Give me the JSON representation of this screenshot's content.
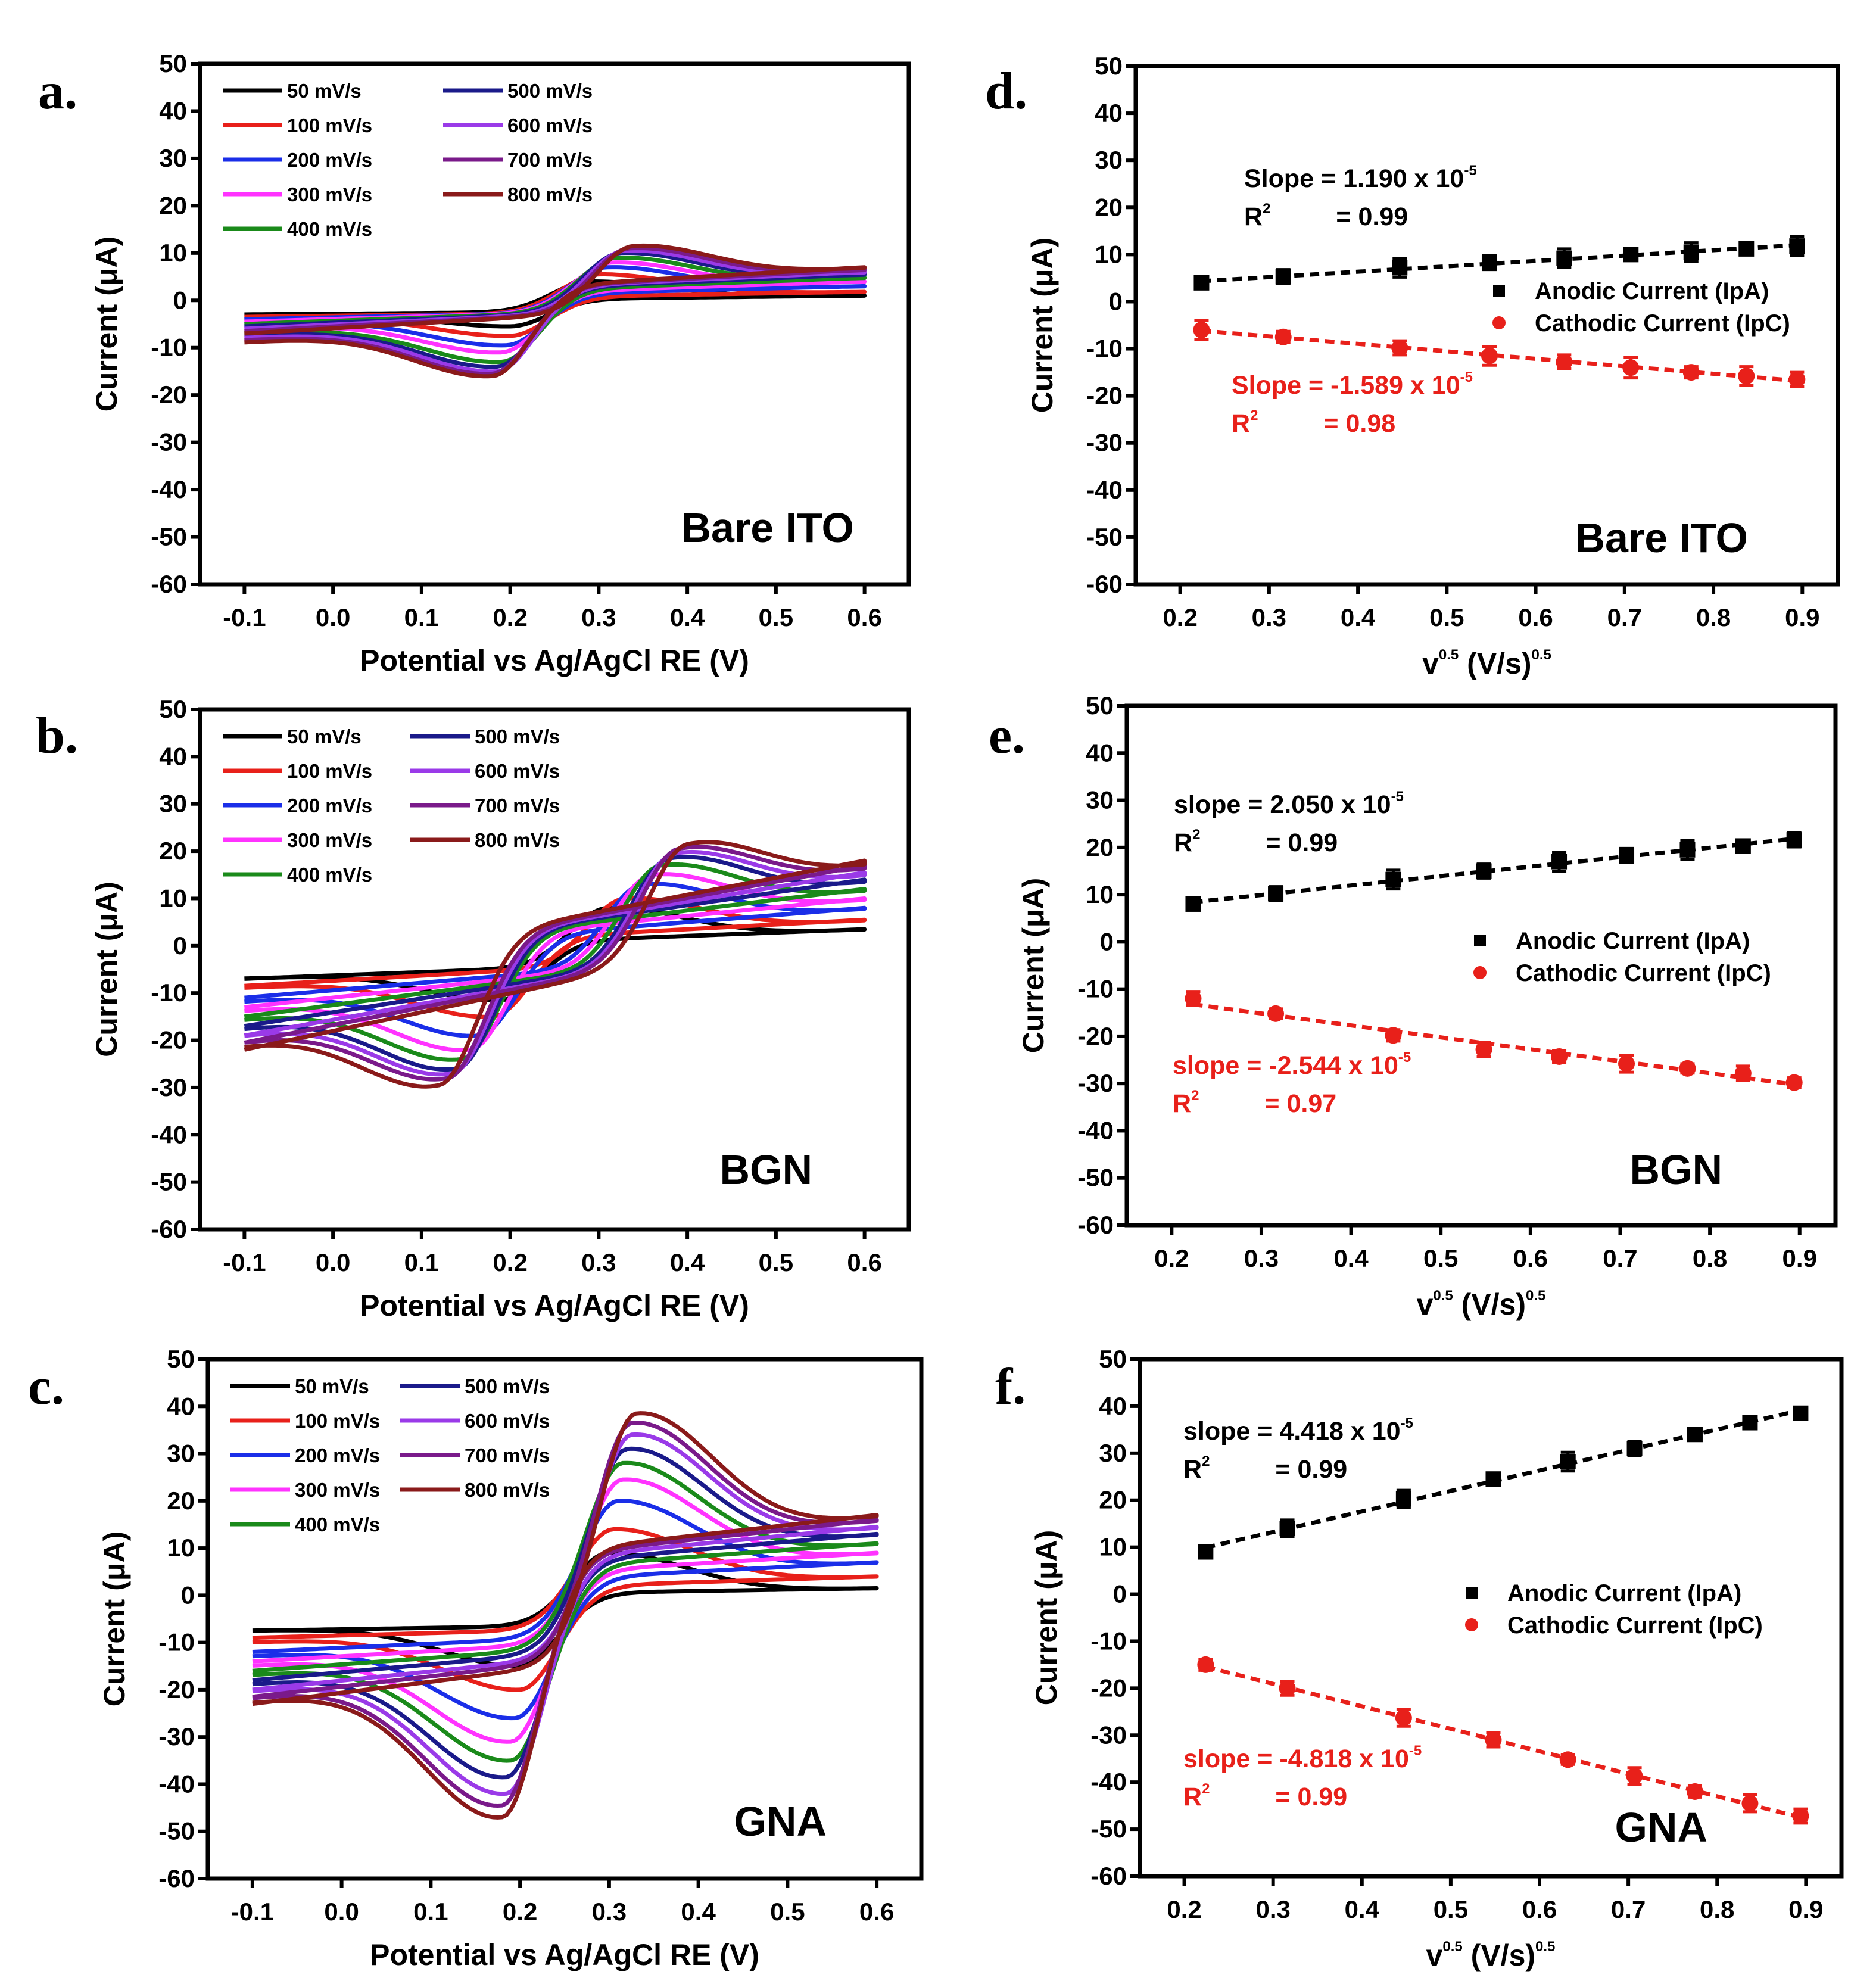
{
  "chart_data": [
    {
      "panel": "a",
      "panel_label": "a.",
      "type": "line",
      "annotation": "Bare ITO",
      "xlabel": "Potential vs Ag/AgCl RE (V)",
      "ylabel": "Current (μA)",
      "xlim": [
        -0.15,
        0.65
      ],
      "ylim": [
        -60,
        50
      ],
      "xticks": [
        "-0.1",
        "0.0",
        "0.1",
        "0.2",
        "0.3",
        "0.4",
        "0.5",
        "0.6"
      ],
      "yticks": [
        "50",
        "40",
        "30",
        "20",
        "10",
        "0",
        "-10",
        "-20",
        "-30",
        "-40",
        "-50",
        "-60"
      ],
      "legend": "top-left",
      "series": [
        {
          "name": "50 mV/s",
          "color": "#000000",
          "anodic_peak": [
            0.29,
            4
          ],
          "cathodic_peak": [
            0.2,
            -5.5
          ],
          "start_current": -3,
          "return_current": -3,
          "vertex_current": 1
        },
        {
          "name": "100 mV/s",
          "color": "#e8201a",
          "anodic_peak": [
            0.3,
            5.5
          ],
          "cathodic_peak": [
            0.2,
            -7.5
          ],
          "start_current": -3.5,
          "return_current": -4,
          "vertex_current": 1.8
        },
        {
          "name": "200 mV/s",
          "color": "#1a2ee8",
          "anodic_peak": [
            0.31,
            7
          ],
          "cathodic_peak": [
            0.195,
            -9.5
          ],
          "start_current": -4,
          "return_current": -5,
          "vertex_current": 3
        },
        {
          "name": "300 mV/s",
          "color": "#ff33ff",
          "anodic_peak": [
            0.315,
            8
          ],
          "cathodic_peak": [
            0.19,
            -11
          ],
          "start_current": -4.5,
          "return_current": -6,
          "vertex_current": 4
        },
        {
          "name": "400 mV/s",
          "color": "#1a8a1a",
          "anodic_peak": [
            0.32,
            9
          ],
          "cathodic_peak": [
            0.19,
            -13
          ],
          "start_current": -5,
          "return_current": -7,
          "vertex_current": 4.8
        },
        {
          "name": "500 mV/s",
          "color": "#1a1a8a",
          "anodic_peak": [
            0.325,
            10
          ],
          "cathodic_peak": [
            0.185,
            -14
          ],
          "start_current": -5.5,
          "return_current": -7.5,
          "vertex_current": 5.5
        },
        {
          "name": "600 mV/s",
          "color": "#9a3ae8",
          "anodic_peak": [
            0.33,
            10.5
          ],
          "cathodic_peak": [
            0.185,
            -15
          ],
          "start_current": -6,
          "return_current": -8,
          "vertex_current": 6
        },
        {
          "name": "700 mV/s",
          "color": "#7a1a8a",
          "anodic_peak": [
            0.335,
            11
          ],
          "cathodic_peak": [
            0.18,
            -15.5
          ],
          "start_current": -6.5,
          "return_current": -8.5,
          "vertex_current": 6.5
        },
        {
          "name": "800 mV/s",
          "color": "#8a1a1a",
          "anodic_peak": [
            0.34,
            11.5
          ],
          "cathodic_peak": [
            0.18,
            -16
          ],
          "start_current": -7,
          "return_current": -9,
          "vertex_current": 7
        }
      ]
    },
    {
      "panel": "b",
      "panel_label": "b.",
      "type": "line",
      "annotation": "BGN",
      "xlabel": "Potential vs Ag/AgCl RE (V)",
      "ylabel": "Current (μA)",
      "xlim": [
        -0.15,
        0.65
      ],
      "ylim": [
        -60,
        50
      ],
      "xticks": [
        "-0.1",
        "0.0",
        "0.1",
        "0.2",
        "0.3",
        "0.4",
        "0.5",
        "0.6"
      ],
      "yticks": [
        "50",
        "40",
        "30",
        "20",
        "10",
        "0",
        "-10",
        "-20",
        "-30",
        "-40",
        "-50",
        "-60"
      ],
      "legend": "top-left",
      "series": [
        {
          "name": "50 mV/s",
          "color": "#000000",
          "anodic_peak": [
            0.31,
            8
          ],
          "cathodic_peak": [
            0.19,
            -11.5
          ],
          "start_current": -7,
          "return_current": -7,
          "vertex_current": 3.5
        },
        {
          "name": "100 mV/s",
          "color": "#e8201a",
          "anodic_peak": [
            0.33,
            10
          ],
          "cathodic_peak": [
            0.18,
            -15
          ],
          "start_current": -8.5,
          "return_current": -9,
          "vertex_current": 5.5
        },
        {
          "name": "200 mV/s",
          "color": "#1a2ee8",
          "anodic_peak": [
            0.35,
            13
          ],
          "cathodic_peak": [
            0.165,
            -19
          ],
          "start_current": -11,
          "return_current": -12,
          "vertex_current": 8
        },
        {
          "name": "300 mV/s",
          "color": "#ff33ff",
          "anodic_peak": [
            0.36,
            15
          ],
          "cathodic_peak": [
            0.155,
            -22
          ],
          "start_current": -13,
          "return_current": -14,
          "vertex_current": 10
        },
        {
          "name": "400 mV/s",
          "color": "#1a8a1a",
          "anodic_peak": [
            0.37,
            17
          ],
          "cathodic_peak": [
            0.145,
            -24
          ],
          "start_current": -15,
          "return_current": -16,
          "vertex_current": 12
        },
        {
          "name": "500 mV/s",
          "color": "#1a1a8a",
          "anodic_peak": [
            0.38,
            18.5
          ],
          "cathodic_peak": [
            0.14,
            -26
          ],
          "start_current": -17,
          "return_current": -18,
          "vertex_current": 14
        },
        {
          "name": "600 mV/s",
          "color": "#9a3ae8",
          "anodic_peak": [
            0.385,
            19.5
          ],
          "cathodic_peak": [
            0.135,
            -27
          ],
          "start_current": -19,
          "return_current": -19.5,
          "vertex_current": 15.5
        },
        {
          "name": "700 mV/s",
          "color": "#7a1a8a",
          "anodic_peak": [
            0.39,
            20.5
          ],
          "cathodic_peak": [
            0.13,
            -28
          ],
          "start_current": -20.5,
          "return_current": -21,
          "vertex_current": 17
        },
        {
          "name": "800 mV/s",
          "color": "#8a1a1a",
          "anodic_peak": [
            0.4,
            21.5
          ],
          "cathodic_peak": [
            0.12,
            -29.5
          ],
          "start_current": -22,
          "return_current": -22,
          "vertex_current": 18
        }
      ]
    },
    {
      "panel": "c",
      "panel_label": "c.",
      "type": "line",
      "annotation": "GNA",
      "xlabel": "Potential vs Ag/AgCl RE (V)",
      "ylabel": "Current (μA)",
      "xlim": [
        -0.15,
        0.65
      ],
      "ylim": [
        -60,
        50
      ],
      "xticks": [
        "-0.1",
        "0.0",
        "0.1",
        "0.2",
        "0.3",
        "0.4",
        "0.5",
        "0.6"
      ],
      "yticks": [
        "50",
        "40",
        "30",
        "20",
        "10",
        "0",
        "-10",
        "-20",
        "-30",
        "-40",
        "-50",
        "-60"
      ],
      "legend": "top-left",
      "series": [
        {
          "name": "50 mV/s",
          "color": "#000000",
          "anodic_peak": [
            0.3,
            9
          ],
          "cathodic_peak": [
            0.2,
            -15
          ],
          "start_current": -7.5,
          "return_current": -7.5,
          "vertex_current": 1.5
        },
        {
          "name": "100 mV/s",
          "color": "#e8201a",
          "anodic_peak": [
            0.305,
            14
          ],
          "cathodic_peak": [
            0.2,
            -20
          ],
          "start_current": -9,
          "return_current": -10,
          "vertex_current": 4
        },
        {
          "name": "200 mV/s",
          "color": "#1a2ee8",
          "anodic_peak": [
            0.31,
            20
          ],
          "cathodic_peak": [
            0.195,
            -26
          ],
          "start_current": -12,
          "return_current": -13,
          "vertex_current": 7
        },
        {
          "name": "300 mV/s",
          "color": "#ff33ff",
          "anodic_peak": [
            0.315,
            24.5
          ],
          "cathodic_peak": [
            0.19,
            -31
          ],
          "start_current": -14,
          "return_current": -15,
          "vertex_current": 9
        },
        {
          "name": "400 mV/s",
          "color": "#1a8a1a",
          "anodic_peak": [
            0.315,
            28
          ],
          "cathodic_peak": [
            0.19,
            -35
          ],
          "start_current": -16,
          "return_current": -17,
          "vertex_current": 11
        },
        {
          "name": "500 mV/s",
          "color": "#1a1a8a",
          "anodic_peak": [
            0.32,
            31
          ],
          "cathodic_peak": [
            0.185,
            -38.5
          ],
          "start_current": -18,
          "return_current": -19,
          "vertex_current": 13
        },
        {
          "name": "600 mV/s",
          "color": "#9a3ae8",
          "anodic_peak": [
            0.325,
            34
          ],
          "cathodic_peak": [
            0.185,
            -42
          ],
          "start_current": -20,
          "return_current": -20.5,
          "vertex_current": 14.5
        },
        {
          "name": "700 mV/s",
          "color": "#7a1a8a",
          "anodic_peak": [
            0.325,
            36.5
          ],
          "cathodic_peak": [
            0.18,
            -44.5
          ],
          "start_current": -21.5,
          "return_current": -22,
          "vertex_current": 16
        },
        {
          "name": "800 mV/s",
          "color": "#8a1a1a",
          "anodic_peak": [
            0.33,
            38.5
          ],
          "cathodic_peak": [
            0.18,
            -47
          ],
          "start_current": -23,
          "return_current": -23,
          "vertex_current": 17
        }
      ]
    },
    {
      "panel": "d",
      "panel_label": "d.",
      "type": "scatter",
      "annotation": "Bare ITO",
      "xlabel": {
        "base": "v",
        "sup1": "0.5",
        "unit": " (V/s)",
        "sup2": "0.5"
      },
      "ylabel": "Current (μA)",
      "xlim": [
        0.15,
        0.94
      ],
      "ylim": [
        -60,
        50
      ],
      "xticks": [
        "0.2",
        "0.3",
        "0.4",
        "0.5",
        "0.6",
        "0.7",
        "0.8",
        "0.9"
      ],
      "yticks": [
        "50",
        "40",
        "30",
        "20",
        "10",
        "0",
        "-10",
        "-20",
        "-30",
        "-40",
        "-50",
        "-60"
      ],
      "legend": "right-middle",
      "x": [
        0.224,
        0.316,
        0.447,
        0.548,
        0.632,
        0.707,
        0.775,
        0.837,
        0.894
      ],
      "series": [
        {
          "name": "Anodic Current (IpA)",
          "color": "#000000",
          "marker": "square",
          "values": [
            4,
            5.3,
            7.2,
            8.3,
            9.2,
            10,
            10.5,
            11.2,
            11.8
          ],
          "errors": [
            1,
            1.5,
            2,
            1.5,
            2,
            1,
            2,
            1,
            2
          ]
        },
        {
          "name": "Cathodic Current (IpC)",
          "color": "#e8201a",
          "marker": "circle",
          "values": [
            -6,
            -7.5,
            -9.8,
            -11.5,
            -12.8,
            -14,
            -15,
            -15.8,
            -16.5
          ],
          "errors": [
            2,
            1.2,
            1.5,
            2,
            1.5,
            2.2,
            1.2,
            2,
            1.5
          ]
        }
      ],
      "fit_annotations": [
        {
          "slope_label": "Slope = 1.190 x 10",
          "exponent": "-5",
          "r2_label": "R",
          "r2_sup": "2",
          "r2_value": "= 0.99",
          "color": "#000000"
        },
        {
          "slope_label": "Slope = -1.589 x 10",
          "exponent": "-5",
          "r2_label": "R",
          "r2_sup": "2",
          "r2_value": "= 0.98",
          "color": "#e8201a"
        }
      ]
    },
    {
      "panel": "e",
      "panel_label": "e.",
      "type": "scatter",
      "annotation": "BGN",
      "xlabel": {
        "base": "v",
        "sup1": "0.5",
        "unit": " (V/s)",
        "sup2": "0.5"
      },
      "ylabel": "Current (μA)",
      "xlim": [
        0.15,
        0.94
      ],
      "ylim": [
        -60,
        50
      ],
      "xticks": [
        "0.2",
        "0.3",
        "0.4",
        "0.5",
        "0.6",
        "0.7",
        "0.8",
        "0.9"
      ],
      "yticks": [
        "50",
        "40",
        "30",
        "20",
        "10",
        "0",
        "-10",
        "-20",
        "-30",
        "-40",
        "-50",
        "-60"
      ],
      "legend": "right-middle",
      "x": [
        0.224,
        0.316,
        0.447,
        0.548,
        0.632,
        0.707,
        0.775,
        0.837,
        0.894
      ],
      "series": [
        {
          "name": "Anodic Current (IpA)",
          "color": "#000000",
          "marker": "square",
          "values": [
            8,
            10.2,
            13.2,
            15,
            17,
            18.3,
            19.5,
            20.3,
            21.6
          ],
          "errors": [
            1,
            1.5,
            2,
            1.5,
            2,
            1.5,
            2,
            1.3,
            1.5
          ]
        },
        {
          "name": "Cathodic Current (IpC)",
          "color": "#e8201a",
          "marker": "circle",
          "values": [
            -12,
            -15.2,
            -19.8,
            -22.8,
            -24.3,
            -25.8,
            -26.8,
            -27.8,
            -29.8
          ],
          "errors": [
            1.5,
            1,
            1.2,
            1.5,
            1.3,
            1.8,
            1,
            1.5,
            1
          ]
        }
      ],
      "fit_annotations": [
        {
          "slope_label": "slope = 2.050 x 10",
          "exponent": "-5",
          "r2_label": "R",
          "r2_sup": "2",
          "r2_value": "= 0.99",
          "color": "#000000"
        },
        {
          "slope_label": "slope = -2.544 x 10",
          "exponent": "-5",
          "r2_label": "R",
          "r2_sup": "2",
          "r2_value": "= 0.97",
          "color": "#e8201a"
        }
      ]
    },
    {
      "panel": "f",
      "panel_label": "f.",
      "type": "scatter",
      "annotation": "GNA",
      "xlabel": {
        "base": "v",
        "sup1": "0.5",
        "unit": " (V/s)",
        "sup2": "0.5"
      },
      "ylabel": "Current (μA)",
      "xlim": [
        0.15,
        0.94
      ],
      "ylim": [
        -60,
        50
      ],
      "xticks": [
        "0.2",
        "0.3",
        "0.4",
        "0.5",
        "0.6",
        "0.7",
        "0.8",
        "0.9"
      ],
      "yticks": [
        "50",
        "40",
        "30",
        "20",
        "10",
        "0",
        "-10",
        "-20",
        "-30",
        "-40",
        "-50",
        "-60"
      ],
      "legend": "right-middle",
      "x": [
        0.224,
        0.316,
        0.447,
        0.548,
        0.632,
        0.707,
        0.775,
        0.837,
        0.894
      ],
      "series": [
        {
          "name": "Anodic Current (IpA)",
          "color": "#000000",
          "marker": "square",
          "values": [
            9,
            14,
            20.3,
            24.5,
            28.2,
            31,
            34,
            36.5,
            38.5
          ],
          "errors": [
            1,
            1.8,
            1.8,
            1,
            2,
            1.5,
            1,
            1.3,
            1.2
          ]
        },
        {
          "name": "Cathodic Current (IpC)",
          "color": "#e8201a",
          "marker": "circle",
          "values": [
            -15,
            -20,
            -26.3,
            -31,
            -35.2,
            -38.7,
            -42,
            -44.5,
            -47.2
          ],
          "errors": [
            1.2,
            1.5,
            1.8,
            1.5,
            1,
            1.8,
            1.2,
            1.8,
            1.5
          ]
        }
      ],
      "fit_annotations": [
        {
          "slope_label": "slope = 4.418 x 10",
          "exponent": "-5",
          "r2_label": "R",
          "r2_sup": "2",
          "r2_value": "= 0.99",
          "color": "#000000"
        },
        {
          "slope_label": "slope = -4.818 x 10",
          "exponent": "-5",
          "r2_label": "R",
          "r2_sup": "2",
          "r2_value": "= 0.99",
          "color": "#e8201a"
        }
      ]
    }
  ]
}
